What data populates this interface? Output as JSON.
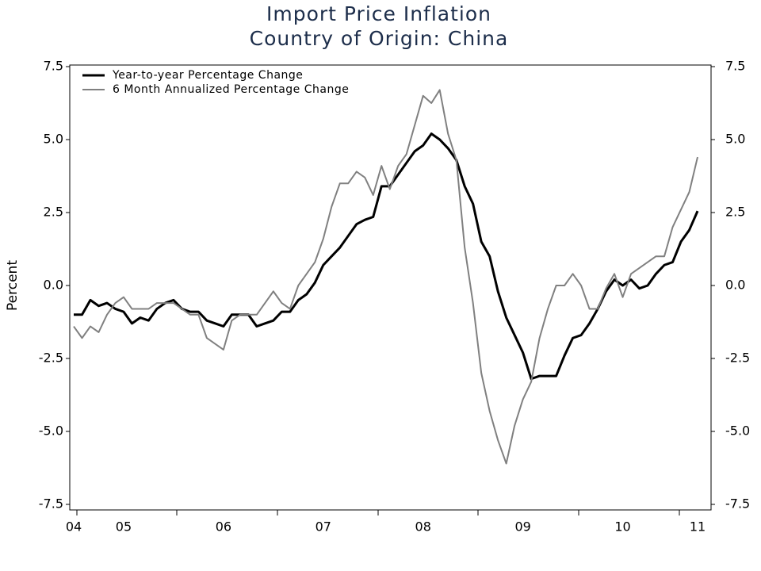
{
  "chart_data": {
    "type": "line",
    "title": [
      "Import Price Inflation",
      "Country of Origin: China"
    ],
    "ylabel": "Percent",
    "categories": [
      "04",
      null,
      null,
      null,
      null,
      null,
      "05",
      null,
      null,
      null,
      null,
      null,
      null,
      null,
      null,
      null,
      null,
      null,
      "06",
      null,
      null,
      null,
      null,
      null,
      null,
      null,
      null,
      null,
      null,
      null,
      "07",
      null,
      null,
      null,
      null,
      null,
      null,
      null,
      null,
      null,
      null,
      null,
      "08",
      null,
      null,
      null,
      null,
      null,
      null,
      null,
      null,
      null,
      null,
      null,
      "09",
      null,
      null,
      null,
      null,
      null,
      null,
      null,
      null,
      null,
      null,
      null,
      "10",
      null,
      null,
      null,
      null,
      null,
      null,
      null,
      null,
      "11"
    ],
    "series": [
      {
        "name": "Year-to-year Percentage Change",
        "color": "#000000",
        "width": 3,
        "values": [
          -1.0,
          -1.0,
          -0.5,
          -0.7,
          -0.6,
          -0.8,
          -0.9,
          -1.3,
          -1.1,
          -1.2,
          -0.8,
          -0.6,
          -0.5,
          -0.8,
          -0.9,
          -0.9,
          -1.2,
          -1.3,
          -1.4,
          -1.0,
          -1.0,
          -1.0,
          -1.4,
          -1.3,
          -1.2,
          -0.9,
          -0.9,
          -0.5,
          -0.3,
          0.1,
          0.7,
          1.0,
          1.3,
          1.7,
          2.1,
          2.25,
          2.35,
          3.4,
          3.4,
          3.8,
          4.2,
          4.6,
          4.8,
          5.2,
          5.0,
          4.7,
          4.3,
          3.4,
          2.8,
          1.5,
          1.0,
          -0.2,
          -1.1,
          -1.7,
          -2.3,
          -3.2,
          -3.1,
          -3.1,
          -3.1,
          -2.4,
          -1.8,
          -1.7,
          -1.3,
          -0.8,
          -0.2,
          0.2,
          0.0,
          0.2,
          -0.1,
          0.0,
          0.4,
          0.7,
          0.8,
          1.5,
          1.9,
          2.55
        ]
      },
      {
        "name": "6 Month Annualized Percentage Change",
        "color": "#808080",
        "width": 2,
        "values": [
          -1.4,
          -1.8,
          -1.4,
          -1.6,
          -1.0,
          -0.6,
          -0.4,
          -0.8,
          -0.8,
          -0.8,
          -0.6,
          -0.6,
          -0.6,
          -0.8,
          -1.0,
          -1.0,
          -1.8,
          -2.0,
          -2.2,
          -1.2,
          -1.0,
          -1.0,
          -1.0,
          -0.6,
          -0.2,
          -0.6,
          -0.8,
          0.0,
          0.4,
          0.8,
          1.6,
          2.7,
          3.5,
          3.5,
          3.9,
          3.7,
          3.1,
          4.1,
          3.3,
          4.1,
          4.5,
          5.5,
          6.5,
          6.25,
          6.7,
          5.2,
          4.3,
          1.3,
          -0.6,
          -3.0,
          -4.3,
          -5.3,
          -6.1,
          -4.8,
          -3.9,
          -3.3,
          -1.8,
          -0.8,
          0.0,
          0.0,
          0.4,
          0.0,
          -0.8,
          -0.8,
          -0.1,
          0.4,
          -0.4,
          0.4,
          0.6,
          0.8,
          1.0,
          1.0,
          2.0,
          2.6,
          3.2,
          4.4
        ]
      }
    ],
    "ylim": [
      -7.5,
      7.5
    ],
    "yticks": [
      -7.5,
      -2.5,
      {
        "value": -5,
        "label": "-5.0"
      },
      {
        "value": 0,
        "label": "0.0"
      },
      2.5,
      {
        "value": 5,
        "label": "5.0"
      },
      7.5
    ],
    "y2lim": [
      -7.5,
      7.5
    ],
    "y2ticks": [
      -7.5,
      -2.5,
      {
        "value": -5,
        "label": "-5.0"
      },
      {
        "value": 0,
        "label": "0.0"
      },
      2.5,
      {
        "value": 5,
        "label": "5.0"
      },
      7.5
    ],
    "legend": "upper left",
    "grid": false
  }
}
